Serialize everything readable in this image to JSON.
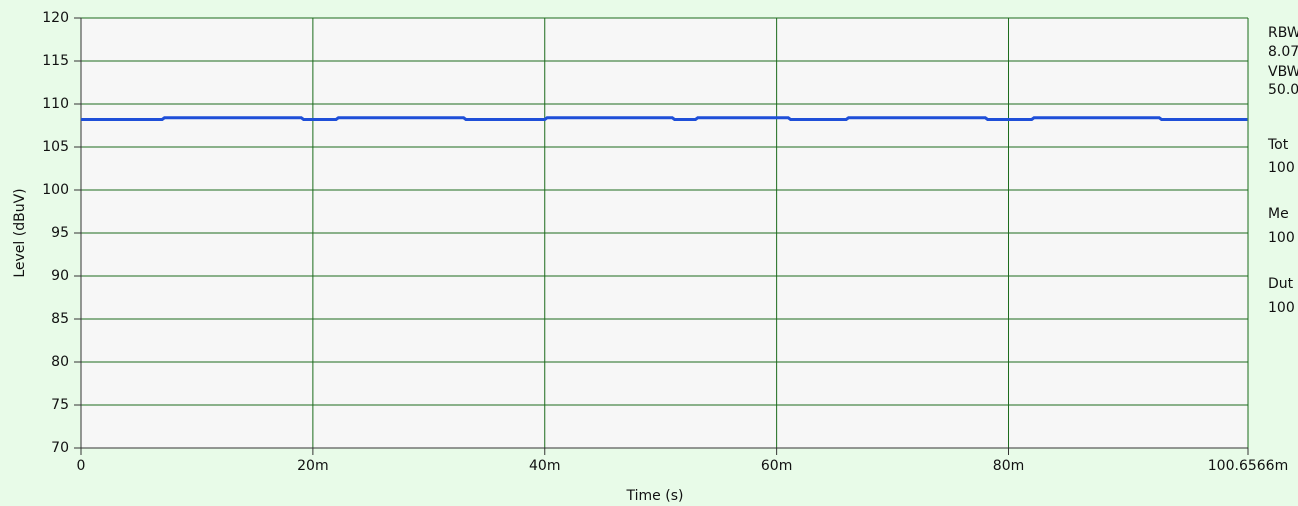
{
  "chart_data": {
    "type": "line",
    "x_label": "Time (s)",
    "y_label": "Level (dBuV)",
    "x": [
      0,
      0.007,
      0.0072,
      0.019,
      0.0192,
      0.022,
      0.0222,
      0.033,
      0.0332,
      0.04,
      0.0402,
      0.051,
      0.0512,
      0.053,
      0.0532,
      0.061,
      0.0612,
      0.066,
      0.0662,
      0.078,
      0.0782,
      0.082,
      0.0822,
      0.093,
      0.0932,
      0.1006
    ],
    "series": [
      {
        "color": "#1f4fd8",
        "values": [
          108.2,
          108.2,
          108.4,
          108.4,
          108.2,
          108.2,
          108.4,
          108.4,
          108.2,
          108.2,
          108.4,
          108.4,
          108.2,
          108.2,
          108.4,
          108.4,
          108.2,
          108.2,
          108.4,
          108.4,
          108.2,
          108.2,
          108.4,
          108.4,
          108.2,
          108.2
        ]
      }
    ],
    "xlim": [
      0,
      0.1006566
    ],
    "xticks": [
      0,
      {
        "value": 0.02,
        "label": "20m"
      },
      {
        "value": 0.04,
        "label": "40m"
      },
      {
        "value": 0.06,
        "label": "60m"
      },
      {
        "value": 0.08,
        "label": "80m"
      },
      {
        "value": 0.1006566,
        "label": "100.6566m"
      }
    ],
    "ylim": [
      70,
      120
    ],
    "yticks": [
      70,
      75,
      80,
      85,
      90,
      95,
      100,
      105,
      110,
      115,
      120
    ],
    "grid": true,
    "grid_color": "#1c6b1c",
    "annotations": [
      "RBW",
      "8.07",
      "VBW",
      "50.0",
      "Tot",
      "100",
      "Me",
      "100",
      "Dut",
      "100"
    ]
  }
}
